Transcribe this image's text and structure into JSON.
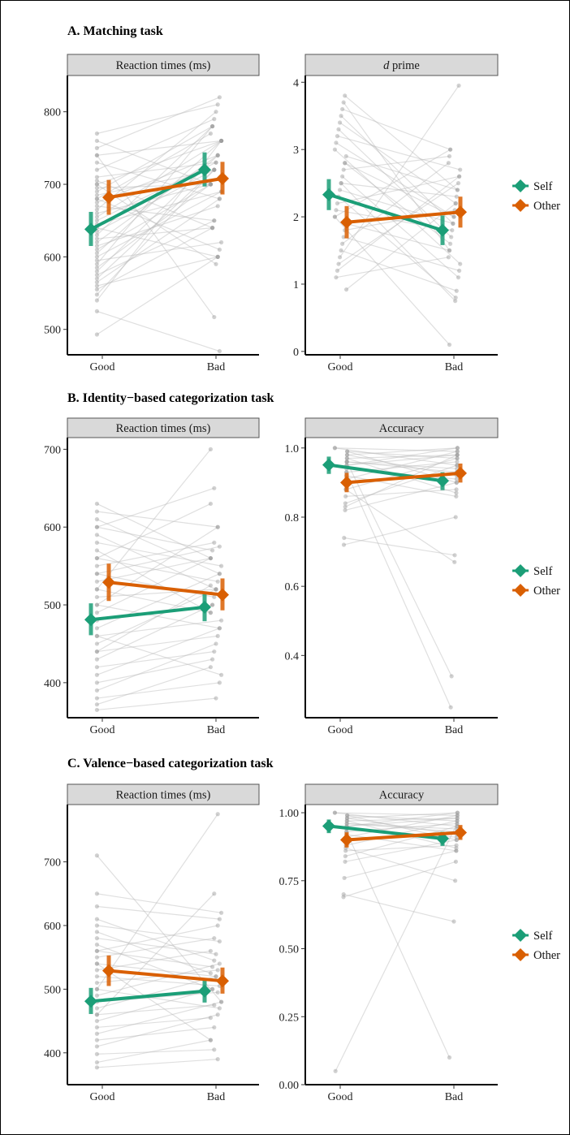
{
  "sections": [
    {
      "title": "A. Matching task",
      "legend": [
        {
          "label": "Self",
          "color": "#1b9e77"
        },
        {
          "label": "Other",
          "color": "#d95f02"
        }
      ],
      "panels": [
        {
          "strip": "Reaction times (ms)",
          "strip_italic": "",
          "strip_rest": ""
        },
        {
          "strip": "",
          "strip_italic": "d",
          "strip_rest": " prime"
        }
      ]
    },
    {
      "title": "B. Identity−based categorization task",
      "legend": [
        {
          "label": "Self",
          "color": "#1b9e77"
        },
        {
          "label": "Other",
          "color": "#d95f02"
        }
      ],
      "panels": [
        {
          "strip": "Reaction times (ms)",
          "strip_italic": "",
          "strip_rest": ""
        },
        {
          "strip": "Accuracy",
          "strip_italic": "",
          "strip_rest": ""
        }
      ]
    },
    {
      "title": "C. Valence−based categorization task",
      "legend": [
        {
          "label": "Self",
          "color": "#1b9e77"
        },
        {
          "label": "Other",
          "color": "#d95f02"
        }
      ],
      "panels": [
        {
          "strip": "Reaction times (ms)",
          "strip_italic": "",
          "strip_rest": ""
        },
        {
          "strip": "Accuracy",
          "strip_italic": "",
          "strip_rest": ""
        }
      ]
    }
  ],
  "chart_data": [
    {
      "type": "line",
      "title": "A. Matching task",
      "panel": "Reaction times (ms)",
      "categories": [
        "Good",
        "Bad"
      ],
      "ylim": [
        465,
        850
      ],
      "yticks": [
        500,
        600,
        700,
        800
      ],
      "tick_labels": [
        "500",
        "600",
        "700",
        "800"
      ],
      "series": [
        {
          "name": "Self",
          "color": "#1b9e77",
          "values": [
            638,
            720
          ],
          "errors": [
            [
              615,
              662
            ],
            [
              697,
              744
            ]
          ]
        },
        {
          "name": "Other",
          "color": "#d95f02",
          "values": [
            682,
            708
          ],
          "errors": [
            [
              658,
              706
            ],
            [
              686,
              731
            ]
          ]
        }
      ],
      "individual_pairs": [
        [
          493,
          600
        ],
        [
          525,
          470
        ],
        [
          540,
          760
        ],
        [
          548,
          720
        ],
        [
          555,
          640
        ],
        [
          560,
          600
        ],
        [
          565,
          680
        ],
        [
          570,
          720
        ],
        [
          575,
          650
        ],
        [
          580,
          740
        ],
        [
          585,
          700
        ],
        [
          590,
          780
        ],
        [
          595,
          620
        ],
        [
          600,
          690
        ],
        [
          605,
          760
        ],
        [
          610,
          700
        ],
        [
          615,
          670
        ],
        [
          620,
          740
        ],
        [
          625,
          640
        ],
        [
          630,
          780
        ],
        [
          635,
          720
        ],
        [
          640,
          600
        ],
        [
          645,
          690
        ],
        [
          650,
          730
        ],
        [
          655,
          760
        ],
        [
          660,
          700
        ],
        [
          665,
          800
        ],
        [
          670,
          650
        ],
        [
          675,
          740
        ],
        [
          680,
          610
        ],
        [
          685,
          720
        ],
        [
          690,
          780
        ],
        [
          695,
          700
        ],
        [
          700,
          760
        ],
        [
          705,
          640
        ],
        [
          710,
          730
        ],
        [
          720,
          790
        ],
        [
          730,
          680
        ],
        [
          740,
          760
        ],
        [
          750,
          820
        ],
        [
          760,
          700
        ],
        [
          770,
          810
        ],
        [
          740,
          517
        ],
        [
          700,
          590
        ],
        [
          680,
          770
        ]
      ]
    },
    {
      "type": "line",
      "title": "A. Matching task",
      "panel": "d prime",
      "categories": [
        "Good",
        "Bad"
      ],
      "ylim": [
        -0.05,
        4.1
      ],
      "yticks": [
        0,
        1,
        2,
        3,
        4
      ],
      "tick_labels": [
        "0",
        "1",
        "2",
        "3",
        "4"
      ],
      "series": [
        {
          "name": "Self",
          "color": "#1b9e77",
          "values": [
            2.33,
            1.8
          ],
          "errors": [
            [
              2.1,
              2.56
            ],
            [
              1.58,
              2.02
            ]
          ]
        },
        {
          "name": "Other",
          "color": "#d95f02",
          "values": [
            1.92,
            2.07
          ],
          "errors": [
            [
              1.68,
              2.16
            ],
            [
              1.84,
              2.3
            ]
          ]
        }
      ],
      "individual_pairs": [
        [
          0.92,
          2.2
        ],
        [
          1.1,
          1.4
        ],
        [
          1.3,
          2.5
        ],
        [
          1.5,
          0.9
        ],
        [
          1.6,
          2.8
        ],
        [
          1.7,
          1.2
        ],
        [
          1.8,
          2.1
        ],
        [
          1.9,
          1.5
        ],
        [
          2.0,
          3.0
        ],
        [
          2.1,
          1.8
        ],
        [
          2.2,
          2.6
        ],
        [
          2.3,
          0.8
        ],
        [
          2.4,
          1.9
        ],
        [
          2.5,
          2.3
        ],
        [
          2.6,
          1.1
        ],
        [
          2.7,
          2.9
        ],
        [
          2.8,
          1.6
        ],
        [
          2.9,
          2.4
        ],
        [
          3.0,
          1.3
        ],
        [
          3.1,
          2.0
        ],
        [
          3.2,
          2.7
        ],
        [
          3.3,
          1.7
        ],
        [
          3.4,
          2.2
        ],
        [
          3.5,
          1.9
        ],
        [
          3.6,
          3.0
        ],
        [
          3.7,
          1.5
        ],
        [
          3.8,
          2.4
        ],
        [
          2.0,
          0.1
        ],
        [
          1.4,
          3.95
        ],
        [
          2.5,
          0.75
        ],
        [
          1.2,
          2.6
        ],
        [
          2.8,
          2.0
        ]
      ]
    },
    {
      "type": "line",
      "title": "B. Identity−based categorization task",
      "panel": "Reaction times (ms)",
      "categories": [
        "Good",
        "Bad"
      ],
      "ylim": [
        355,
        715
      ],
      "yticks": [
        400,
        500,
        600,
        700
      ],
      "tick_labels": [
        "400",
        "500",
        "600",
        "700"
      ],
      "series": [
        {
          "name": "Self",
          "color": "#1b9e77",
          "values": [
            481,
            497
          ],
          "errors": [
            [
              461,
              502
            ],
            [
              479,
              515
            ]
          ]
        },
        {
          "name": "Other",
          "color": "#d95f02",
          "values": [
            529,
            513
          ],
          "errors": [
            [
              505,
              553
            ],
            [
              493,
              534
            ]
          ]
        }
      ],
      "individual_pairs": [
        [
          365,
          380
        ],
        [
          372,
          420
        ],
        [
          380,
          400
        ],
        [
          390,
          450
        ],
        [
          400,
          430
        ],
        [
          410,
          470
        ],
        [
          420,
          440
        ],
        [
          430,
          500
        ],
        [
          440,
          460
        ],
        [
          450,
          520
        ],
        [
          460,
          480
        ],
        [
          470,
          540
        ],
        [
          480,
          500
        ],
        [
          490,
          560
        ],
        [
          500,
          470
        ],
        [
          510,
          520
        ],
        [
          520,
          490
        ],
        [
          530,
          560
        ],
        [
          540,
          510
        ],
        [
          550,
          580
        ],
        [
          560,
          530
        ],
        [
          570,
          490
        ],
        [
          580,
          550
        ],
        [
          590,
          520
        ],
        [
          600,
          570
        ],
        [
          610,
          540
        ],
        [
          620,
          600
        ],
        [
          630,
          560
        ],
        [
          520,
          700
        ],
        [
          560,
          630
        ],
        [
          600,
          650
        ],
        [
          500,
          600
        ],
        [
          460,
          410
        ],
        [
          440,
          525
        ],
        [
          540,
          575
        ]
      ]
    },
    {
      "type": "line",
      "title": "B. Identity−based categorization task",
      "panel": "Accuracy",
      "categories": [
        "Good",
        "Bad"
      ],
      "ylim": [
        0.22,
        1.03
      ],
      "yticks": [
        0.4,
        0.6,
        0.8,
        1.0
      ],
      "tick_labels": [
        "0.4",
        "0.6",
        "0.8",
        "1.0"
      ],
      "series": [
        {
          "name": "Self",
          "color": "#1b9e77",
          "values": [
            0.951,
            0.905
          ],
          "errors": [
            [
              0.925,
              0.975
            ],
            [
              0.878,
              0.93
            ]
          ]
        },
        {
          "name": "Other",
          "color": "#d95f02",
          "values": [
            0.9,
            0.927
          ],
          "errors": [
            [
              0.872,
              0.928
            ],
            [
              0.9,
              0.955
            ]
          ]
        }
      ],
      "individual_pairs": [
        [
          0.82,
          0.9
        ],
        [
          0.84,
          0.95
        ],
        [
          0.86,
          0.88
        ],
        [
          0.88,
          0.97
        ],
        [
          0.9,
          0.93
        ],
        [
          0.91,
          0.99
        ],
        [
          0.92,
          0.86
        ],
        [
          0.93,
          0.96
        ],
        [
          0.94,
          0.91
        ],
        [
          0.95,
          1.0
        ],
        [
          0.96,
          0.94
        ],
        [
          0.97,
          0.98
        ],
        [
          0.98,
          0.92
        ],
        [
          0.99,
          0.97
        ],
        [
          1.0,
          0.95
        ],
        [
          1.0,
          0.99
        ],
        [
          0.99,
          0.9
        ],
        [
          0.98,
          1.0
        ],
        [
          0.97,
          0.87
        ],
        [
          0.96,
          0.93
        ],
        [
          0.95,
          0.98
        ],
        [
          0.72,
          0.8
        ],
        [
          0.74,
          0.69
        ],
        [
          0.93,
          0.25
        ],
        [
          0.96,
          0.34
        ],
        [
          0.83,
          0.98
        ],
        [
          0.88,
          0.67
        ]
      ]
    },
    {
      "type": "line",
      "title": "C. Valence−based categorization task",
      "panel": "Reaction times (ms)",
      "categories": [
        "Good",
        "Bad"
      ],
      "ylim": [
        350,
        790
      ],
      "yticks": [
        400,
        500,
        600,
        700
      ],
      "tick_labels": [
        "400",
        "500",
        "600",
        "700"
      ],
      "series": [
        {
          "name": "Self",
          "color": "#1b9e77",
          "values": [
            481,
            497
          ],
          "errors": [
            [
              461,
              502
            ],
            [
              479,
              515
            ]
          ]
        },
        {
          "name": "Other",
          "color": "#d95f02",
          "values": [
            529,
            513
          ],
          "errors": [
            [
              505,
              553
            ],
            [
              493,
              534
            ]
          ]
        }
      ],
      "individual_pairs": [
        [
          377,
          390
        ],
        [
          385,
          420
        ],
        [
          398,
          405
        ],
        [
          410,
          460
        ],
        [
          420,
          440
        ],
        [
          430,
          480
        ],
        [
          440,
          455
        ],
        [
          450,
          500
        ],
        [
          460,
          475
        ],
        [
          470,
          520
        ],
        [
          480,
          495
        ],
        [
          490,
          540
        ],
        [
          500,
          470
        ],
        [
          510,
          530
        ],
        [
          520,
          505
        ],
        [
          530,
          560
        ],
        [
          540,
          520
        ],
        [
          550,
          580
        ],
        [
          560,
          535
        ],
        [
          570,
          500
        ],
        [
          580,
          555
        ],
        [
          590,
          525
        ],
        [
          600,
          575
        ],
        [
          610,
          545
        ],
        [
          630,
          610
        ],
        [
          650,
          620
        ],
        [
          710,
          480
        ],
        [
          500,
          775
        ],
        [
          460,
          650
        ],
        [
          540,
          420
        ],
        [
          560,
          600
        ]
      ]
    },
    {
      "type": "line",
      "title": "C. Valence−based categorization task",
      "panel": "Accuracy",
      "categories": [
        "Good",
        "Bad"
      ],
      "ylim": [
        0.0,
        1.03
      ],
      "yticks": [
        0.0,
        0.25,
        0.5,
        0.75,
        1.0
      ],
      "tick_labels": [
        "0.00",
        "0.25",
        "0.50",
        "0.75",
        "1.00"
      ],
      "series": [
        {
          "name": "Self",
          "color": "#1b9e77",
          "values": [
            0.951,
            0.905
          ],
          "errors": [
            [
              0.925,
              0.975
            ],
            [
              0.878,
              0.93
            ]
          ]
        },
        {
          "name": "Other",
          "color": "#d95f02",
          "values": [
            0.9,
            0.927
          ],
          "errors": [
            [
              0.872,
              0.928
            ],
            [
              0.9,
              0.955
            ]
          ]
        }
      ],
      "individual_pairs": [
        [
          0.82,
          0.9
        ],
        [
          0.84,
          0.95
        ],
        [
          0.86,
          0.88
        ],
        [
          0.88,
          0.97
        ],
        [
          0.9,
          0.93
        ],
        [
          0.91,
          0.99
        ],
        [
          0.92,
          0.86
        ],
        [
          0.93,
          0.96
        ],
        [
          0.94,
          0.91
        ],
        [
          0.95,
          1.0
        ],
        [
          0.96,
          0.94
        ],
        [
          0.97,
          0.98
        ],
        [
          0.98,
          0.92
        ],
        [
          0.99,
          0.97
        ],
        [
          1.0,
          0.95
        ],
        [
          1.0,
          0.99
        ],
        [
          0.99,
          0.9
        ],
        [
          0.98,
          1.0
        ],
        [
          0.97,
          0.87
        ],
        [
          0.96,
          0.93
        ],
        [
          0.95,
          0.98
        ],
        [
          0.7,
          0.6
        ],
        [
          0.76,
          0.86
        ],
        [
          0.93,
          0.1
        ],
        [
          0.05,
          0.96
        ],
        [
          0.87,
          0.75
        ],
        [
          0.69,
          0.82
        ]
      ]
    }
  ]
}
